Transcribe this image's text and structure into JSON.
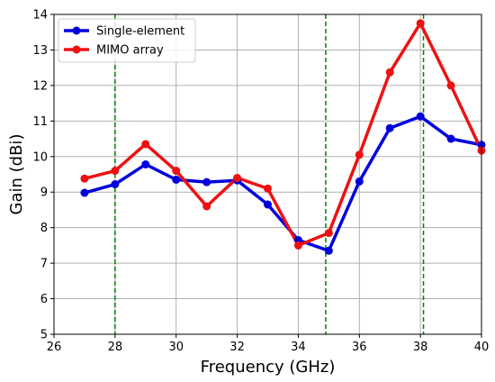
{
  "chart_data": {
    "type": "line",
    "title": "",
    "xlabel": "Frequency (GHz)",
    "ylabel": "Gain (dBi)",
    "xlim": [
      26,
      40
    ],
    "ylim": [
      5,
      14
    ],
    "xticks": [
      26,
      28,
      30,
      32,
      34,
      36,
      38,
      40
    ],
    "yticks": [
      5,
      6,
      7,
      8,
      9,
      10,
      11,
      12,
      13,
      14
    ],
    "grid": true,
    "legend_position": "top-left",
    "x": [
      27,
      28,
      29,
      30,
      31,
      32,
      33,
      34,
      35,
      36,
      37,
      38,
      39,
      40
    ],
    "series": [
      {
        "name": "Single-element",
        "color": "#0000dd",
        "values": [
          8.98,
          9.22,
          9.78,
          9.35,
          9.28,
          9.33,
          8.65,
          7.65,
          7.35,
          9.3,
          10.8,
          11.13,
          10.5,
          10.33
        ]
      },
      {
        "name": "MIMO array",
        "color": "#ee1111",
        "values": [
          9.38,
          9.6,
          10.35,
          9.6,
          8.6,
          9.4,
          9.1,
          7.5,
          7.85,
          10.05,
          12.37,
          13.75,
          12.0,
          10.17
        ]
      }
    ],
    "reference_lines": {
      "x": [
        28,
        34.9,
        38.1
      ],
      "color": "#008000",
      "style": "dashed"
    }
  }
}
